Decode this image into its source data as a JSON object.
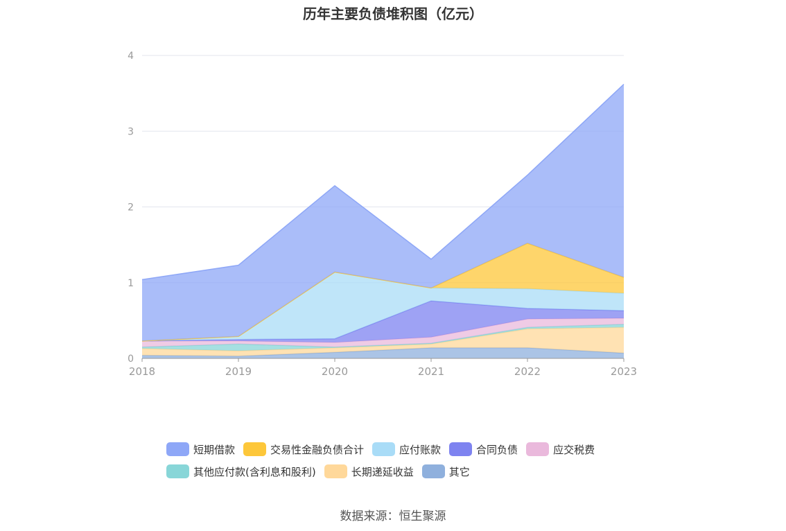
{
  "chart_data": {
    "type": "area",
    "stacked": true,
    "title": "历年主要负债堆积图（亿元）",
    "x": [
      "2018",
      "2019",
      "2020",
      "2021",
      "2022",
      "2023"
    ],
    "ylim": [
      0,
      4
    ],
    "yticks": [
      "0",
      "1",
      "2",
      "3",
      "4"
    ],
    "grid": true,
    "legend_position": "bottom",
    "series": [
      {
        "name": "其它",
        "color": "#8fb0dd",
        "values": [
          0.04,
          0.03,
          0.08,
          0.14,
          0.14,
          0.07
        ]
      },
      {
        "name": "长期递延收益",
        "color": "#ffd89a",
        "values": [
          0.09,
          0.07,
          0.06,
          0.05,
          0.25,
          0.34
        ]
      },
      {
        "name": "其他应付款(含利息和股利)",
        "color": "#88d6d8",
        "values": [
          0.02,
          0.09,
          0.01,
          0.01,
          0.02,
          0.04
        ]
      },
      {
        "name": "应交税费",
        "color": "#eab9dc",
        "values": [
          0.08,
          0.04,
          0.06,
          0.08,
          0.11,
          0.08
        ]
      },
      {
        "name": "合同负债",
        "color": "#7e83f0",
        "values": [
          0.0,
          0.02,
          0.05,
          0.48,
          0.14,
          0.1
        ]
      },
      {
        "name": "应付账款",
        "color": "#a9dcf7",
        "values": [
          0.0,
          0.04,
          0.88,
          0.17,
          0.26,
          0.23
        ]
      },
      {
        "name": "交易性金融负债合计",
        "color": "#fdc73a",
        "values": [
          0.0,
          0.0,
          0.0,
          0.0,
          0.6,
          0.21
        ]
      },
      {
        "name": "短期借款",
        "color": "#8ea7f7",
        "values": [
          0.81,
          0.94,
          1.14,
          0.38,
          0.9,
          2.55
        ]
      }
    ],
    "legend_order": [
      "短期借款",
      "交易性金融负债合计",
      "应付账款",
      "合同负债",
      "应交税费",
      "其他应付款(含利息和股利)",
      "长期递延收益",
      "其它"
    ]
  },
  "legend": {
    "row1": [
      {
        "label": "短期借款",
        "color": "#8ea7f7"
      },
      {
        "label": "交易性金融负债合计",
        "color": "#fdc73a"
      },
      {
        "label": "应付账款",
        "color": "#a9dcf7"
      },
      {
        "label": "合同负债",
        "color": "#7e83f0"
      },
      {
        "label": "应交税费",
        "color": "#eab9dc"
      }
    ],
    "row2": [
      {
        "label": "其他应付款(含利息和股利)",
        "color": "#88d6d8"
      },
      {
        "label": "长期递延收益",
        "color": "#ffd89a"
      },
      {
        "label": "其它",
        "color": "#8fb0dd"
      }
    ]
  },
  "source": "数据来源：恒生聚源"
}
